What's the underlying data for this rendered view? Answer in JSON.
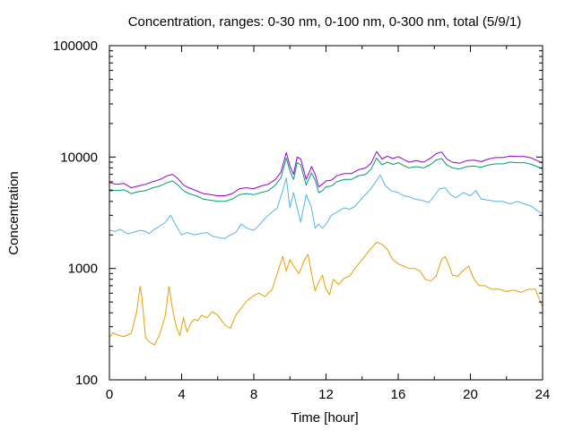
{
  "chart_data": {
    "type": "line",
    "title": "Concentration, ranges: 0-30 nm, 0-100 nm, 0-300 nm, total (5/9/1)",
    "xlabel": "Time [hour]",
    "ylabel": "Concentration",
    "xlim": [
      0,
      24
    ],
    "ylim": [
      100,
      100000
    ],
    "yscale": "log",
    "grid": false,
    "legend": "none",
    "xticks": [
      "0",
      "4",
      "8",
      "12",
      "16",
      "20",
      "24"
    ],
    "yticks": [
      "100",
      "1000",
      "10000",
      "100000"
    ],
    "series": [
      {
        "color": "#e69f00",
        "x": [
          0,
          0.2,
          0.5,
          0.8,
          1.2,
          1.5,
          1.7,
          1.8,
          2.0,
          2.2,
          2.5,
          2.8,
          3.1,
          3.3,
          3.5,
          3.7,
          3.9,
          4.1,
          4.3,
          4.5,
          4.7,
          4.9,
          5.1,
          5.4,
          5.7,
          6.0,
          6.4,
          6.7,
          7.0,
          7.3,
          7.6,
          8.0,
          8.3,
          8.6,
          9.0,
          9.3,
          9.6,
          9.8,
          10.0,
          10.2,
          10.5,
          10.8,
          11.0,
          11.2,
          11.4,
          11.6,
          11.8,
          12.0,
          12.2,
          12.4,
          12.7,
          13.0,
          13.3,
          13.6,
          14.0,
          14.4,
          14.8,
          15.1,
          15.4,
          15.7,
          16.0,
          16.3,
          16.6,
          16.9,
          17.2,
          17.5,
          17.8,
          18.1,
          18.4,
          18.6,
          18.8,
          19.0,
          19.3,
          19.6,
          19.9,
          20.2,
          20.5,
          20.8,
          21.2,
          21.6,
          22.0,
          22.4,
          22.8,
          23.2,
          23.6,
          24.0
        ],
        "y": [
          240,
          265,
          250,
          245,
          260,
          400,
          690,
          550,
          240,
          220,
          205,
          260,
          380,
          690,
          430,
          300,
          250,
          360,
          270,
          320,
          350,
          340,
          380,
          360,
          410,
          380,
          310,
          290,
          380,
          440,
          510,
          570,
          600,
          560,
          640,
          900,
          1290,
          950,
          1200,
          1050,
          900,
          1190,
          1340,
          900,
          630,
          760,
          870,
          650,
          580,
          800,
          720,
          820,
          850,
          1000,
          1200,
          1450,
          1720,
          1650,
          1480,
          1200,
          1100,
          1050,
          1000,
          1000,
          950,
          800,
          770,
          850,
          1200,
          1280,
          1080,
          870,
          850,
          960,
          1050,
          800,
          700,
          700,
          650,
          650,
          620,
          640,
          610,
          650,
          650,
          450
        ]
      },
      {
        "color": "#56b4e9",
        "x": [
          0,
          0.3,
          0.6,
          1.0,
          1.3,
          1.7,
          2.0,
          2.2,
          2.5,
          2.8,
          3.1,
          3.4,
          3.7,
          4.0,
          4.3,
          4.7,
          5.0,
          5.4,
          5.7,
          6.0,
          6.4,
          6.7,
          7.0,
          7.3,
          7.6,
          8.0,
          8.3,
          8.6,
          9.0,
          9.3,
          9.6,
          9.8,
          10.0,
          10.2,
          10.4,
          10.6,
          10.9,
          11.2,
          11.4,
          11.6,
          11.8,
          12.0,
          12.3,
          12.6,
          13.0,
          13.3,
          13.6,
          14.0,
          14.4,
          14.7,
          15.0,
          15.3,
          15.6,
          16.0,
          16.3,
          16.6,
          16.9,
          17.3,
          17.7,
          18.0,
          18.3,
          18.6,
          18.9,
          19.2,
          19.6,
          20.0,
          20.3,
          20.6,
          21.0,
          21.4,
          21.8,
          22.2,
          22.6,
          23.0,
          23.4,
          23.7,
          24.0
        ],
        "y": [
          2200,
          2150,
          2250,
          2050,
          2100,
          2200,
          2150,
          2050,
          2250,
          2400,
          2600,
          3000,
          2400,
          2000,
          2100,
          2000,
          2050,
          2100,
          1950,
          1900,
          1850,
          2000,
          2100,
          2500,
          2300,
          2200,
          2450,
          2800,
          3200,
          3500,
          5000,
          6500,
          3500,
          4800,
          3500,
          2600,
          4600,
          3500,
          2300,
          2500,
          2300,
          2500,
          3000,
          3200,
          3500,
          3400,
          3600,
          4300,
          5000,
          5800,
          6900,
          5500,
          5000,
          4800,
          4500,
          4400,
          4200,
          4100,
          3900,
          4500,
          5200,
          5300,
          4600,
          4300,
          4800,
          4500,
          5000,
          4200,
          4100,
          4000,
          4000,
          3800,
          4000,
          3800,
          3600,
          3300,
          3100
        ]
      },
      {
        "color": "#009e73",
        "x": [
          0,
          0.4,
          0.8,
          1.2,
          1.6,
          2.0,
          2.4,
          2.8,
          3.2,
          3.5,
          3.8,
          4.1,
          4.4,
          4.8,
          5.2,
          5.6,
          6.0,
          6.4,
          6.8,
          7.2,
          7.6,
          8.0,
          8.4,
          8.8,
          9.2,
          9.5,
          9.8,
          10.0,
          10.2,
          10.4,
          10.6,
          10.9,
          11.2,
          11.4,
          11.6,
          11.8,
          12.0,
          12.3,
          12.6,
          13.0,
          13.4,
          13.8,
          14.2,
          14.5,
          14.8,
          15.1,
          15.4,
          15.7,
          16.0,
          16.3,
          16.6,
          17.0,
          17.4,
          17.8,
          18.1,
          18.4,
          18.7,
          19.0,
          19.4,
          19.8,
          20.2,
          20.6,
          21.0,
          21.4,
          21.8,
          22.2,
          22.6,
          23.0,
          23.4,
          23.7,
          24.0
        ],
        "y": [
          5100,
          5000,
          5100,
          4700,
          4900,
          5000,
          5300,
          5500,
          5900,
          6100,
          5600,
          5000,
          4700,
          4500,
          4200,
          4100,
          4000,
          4000,
          4200,
          4600,
          4700,
          4600,
          4800,
          5000,
          5600,
          6500,
          9800,
          7500,
          6300,
          8900,
          8500,
          5600,
          7200,
          6200,
          4800,
          5000,
          5400,
          5500,
          6000,
          6300,
          6300,
          6800,
          7000,
          7800,
          9800,
          8500,
          9000,
          8600,
          8900,
          8400,
          8000,
          8200,
          8000,
          8600,
          9400,
          9700,
          8500,
          8000,
          7800,
          8200,
          8300,
          8100,
          8500,
          8700,
          8700,
          9000,
          8900,
          8900,
          8600,
          8200,
          7800
        ]
      },
      {
        "color": "#9400d3",
        "x": [
          0,
          0.4,
          0.8,
          1.2,
          1.6,
          2.0,
          2.4,
          2.8,
          3.2,
          3.5,
          3.8,
          4.1,
          4.4,
          4.8,
          5.2,
          5.6,
          6.0,
          6.4,
          6.8,
          7.2,
          7.6,
          8.0,
          8.4,
          8.8,
          9.2,
          9.5,
          9.8,
          10.0,
          10.2,
          10.4,
          10.6,
          10.9,
          11.2,
          11.4,
          11.6,
          11.8,
          12.0,
          12.3,
          12.6,
          13.0,
          13.4,
          13.8,
          14.2,
          14.5,
          14.8,
          15.1,
          15.4,
          15.7,
          16.0,
          16.3,
          16.6,
          17.0,
          17.4,
          17.8,
          18.1,
          18.4,
          18.7,
          19.0,
          19.4,
          19.8,
          20.2,
          20.6,
          21.0,
          21.4,
          21.8,
          22.2,
          22.6,
          23.0,
          23.4,
          23.7,
          24.0
        ],
        "y": [
          5900,
          5700,
          5800,
          5300,
          5500,
          5700,
          6000,
          6300,
          6800,
          7000,
          6400,
          5600,
          5300,
          5000,
          4700,
          4600,
          4500,
          4500,
          4700,
          5200,
          5300,
          5200,
          5500,
          5700,
          6300,
          7300,
          11000,
          8300,
          7000,
          10000,
          9600,
          6300,
          8200,
          7000,
          5400,
          5700,
          6100,
          6200,
          6800,
          7100,
          7100,
          7700,
          8000,
          8800,
          11200,
          9600,
          10200,
          9700,
          10100,
          9500,
          9000,
          9300,
          9000,
          9800,
          10700,
          11100,
          9600,
          9000,
          8800,
          9300,
          9400,
          9100,
          9600,
          9900,
          9900,
          10200,
          10100,
          10100,
          9800,
          9300,
          8800
        ]
      }
    ]
  }
}
